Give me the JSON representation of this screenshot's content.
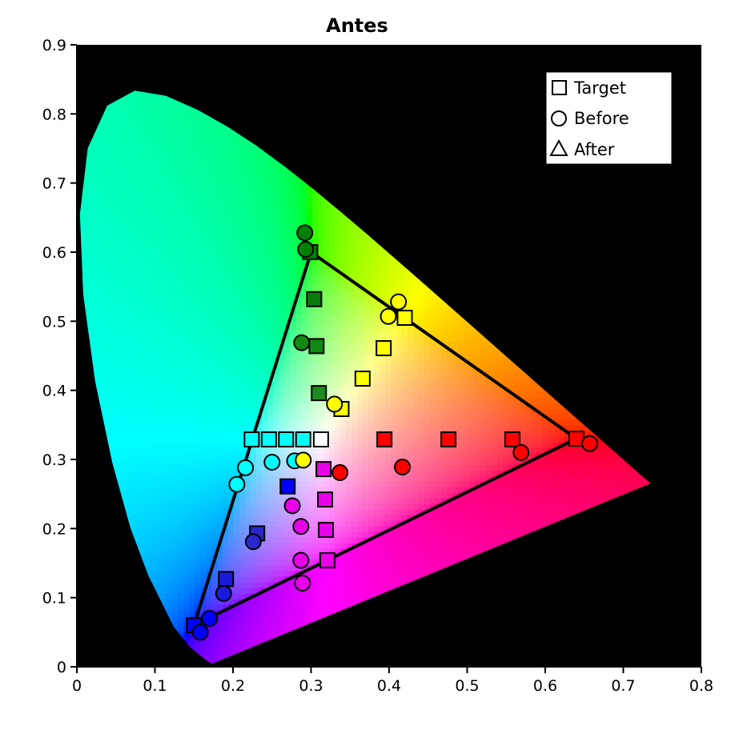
{
  "chart_data": {
    "type": "scatter",
    "title": "Antes",
    "xlabel": "",
    "ylabel": "",
    "xlim": [
      0,
      0.8
    ],
    "ylim": [
      0,
      0.9
    ],
    "x_ticks": [
      0,
      0.1,
      0.2,
      0.3,
      0.4,
      0.5,
      0.6,
      0.7,
      0.8
    ],
    "y_ticks": [
      0,
      0.1,
      0.2,
      0.3,
      0.4,
      0.5,
      0.6,
      0.7,
      0.8,
      0.9
    ],
    "x_tick_labels": [
      "0",
      "0.1",
      "0.2",
      "0.3",
      "0.4",
      "0.5",
      "0.6",
      "0.7",
      "0.8"
    ],
    "y_tick_labels": [
      "0",
      "0.1",
      "0.2",
      "0.3",
      "0.4",
      "0.5",
      "0.6",
      "0.7",
      "0.8",
      "0.9"
    ],
    "background_color": "#000000",
    "legend_position": "top-right",
    "legend": [
      {
        "label": "Target",
        "marker": "square"
      },
      {
        "label": "Before",
        "marker": "circle"
      },
      {
        "label": "After",
        "marker": "triangle"
      }
    ],
    "gamut_triangle": [
      [
        0.64,
        0.33
      ],
      [
        0.3,
        0.6
      ],
      [
        0.15,
        0.06
      ]
    ],
    "series": [
      {
        "name": "Target",
        "marker": "square",
        "points": [
          {
            "x": 0.15,
            "y": 0.06,
            "color": "#0000ff"
          },
          {
            "x": 0.191,
            "y": 0.127,
            "color": "#1a1adc"
          },
          {
            "x": 0.231,
            "y": 0.193,
            "color": "#2828cc"
          },
          {
            "x": 0.27,
            "y": 0.261,
            "color": "#0000ff"
          },
          {
            "x": 0.299,
            "y": 0.6,
            "color": "#008000"
          },
          {
            "x": 0.304,
            "y": 0.532,
            "color": "#0a7a0a"
          },
          {
            "x": 0.307,
            "y": 0.464,
            "color": "#118811"
          },
          {
            "x": 0.31,
            "y": 0.396,
            "color": "#1f8a1f"
          },
          {
            "x": 0.316,
            "y": 0.286,
            "color": "#e800e8"
          },
          {
            "x": 0.318,
            "y": 0.242,
            "color": "#e800e8"
          },
          {
            "x": 0.319,
            "y": 0.198,
            "color": "#e800e8"
          },
          {
            "x": 0.321,
            "y": 0.154,
            "color": "#e800e8"
          },
          {
            "x": 0.224,
            "y": 0.329,
            "color": "#00ffff"
          },
          {
            "x": 0.246,
            "y": 0.329,
            "color": "#00ffff"
          },
          {
            "x": 0.268,
            "y": 0.329,
            "color": "#00ffff"
          },
          {
            "x": 0.29,
            "y": 0.329,
            "color": "#00ffff"
          },
          {
            "x": 0.3127,
            "y": 0.329,
            "color": "#ffffff"
          },
          {
            "x": 0.394,
            "y": 0.329,
            "color": "#ff0000"
          },
          {
            "x": 0.476,
            "y": 0.329,
            "color": "#ff0000"
          },
          {
            "x": 0.558,
            "y": 0.329,
            "color": "#ff0000"
          },
          {
            "x": 0.64,
            "y": 0.33,
            "color": "#ff0000"
          },
          {
            "x": 0.42,
            "y": 0.505,
            "color": "#ffff00"
          },
          {
            "x": 0.393,
            "y": 0.461,
            "color": "#ffff00"
          },
          {
            "x": 0.366,
            "y": 0.417,
            "color": "#ffff00"
          },
          {
            "x": 0.339,
            "y": 0.373,
            "color": "#ffff00"
          }
        ]
      },
      {
        "name": "Before",
        "marker": "circle",
        "points": [
          {
            "x": 0.158,
            "y": 0.05,
            "color": "#0000ff"
          },
          {
            "x": 0.17,
            "y": 0.07,
            "color": "#0000ff"
          },
          {
            "x": 0.188,
            "y": 0.106,
            "color": "#1a1adc"
          },
          {
            "x": 0.226,
            "y": 0.181,
            "color": "#2828cc"
          },
          {
            "x": 0.292,
            "y": 0.628,
            "color": "#008000"
          },
          {
            "x": 0.293,
            "y": 0.604,
            "color": "#008000"
          },
          {
            "x": 0.288,
            "y": 0.469,
            "color": "#118811"
          },
          {
            "x": 0.205,
            "y": 0.264,
            "color": "#00ffff"
          },
          {
            "x": 0.216,
            "y": 0.288,
            "color": "#00ffff"
          },
          {
            "x": 0.25,
            "y": 0.296,
            "color": "#00ffff"
          },
          {
            "x": 0.279,
            "y": 0.298,
            "color": "#00ffff"
          },
          {
            "x": 0.29,
            "y": 0.299,
            "color": "#ffff00"
          },
          {
            "x": 0.276,
            "y": 0.233,
            "color": "#e800e8"
          },
          {
            "x": 0.287,
            "y": 0.203,
            "color": "#e800e8"
          },
          {
            "x": 0.287,
            "y": 0.154,
            "color": "#e800e8"
          },
          {
            "x": 0.289,
            "y": 0.121,
            "color": "#e800e8"
          },
          {
            "x": 0.337,
            "y": 0.281,
            "color": "#ff0000"
          },
          {
            "x": 0.417,
            "y": 0.289,
            "color": "#ff0000"
          },
          {
            "x": 0.569,
            "y": 0.31,
            "color": "#ff0000"
          },
          {
            "x": 0.657,
            "y": 0.323,
            "color": "#ff0000"
          },
          {
            "x": 0.412,
            "y": 0.528,
            "color": "#ffff00"
          },
          {
            "x": 0.399,
            "y": 0.507,
            "color": "#ffff00"
          },
          {
            "x": 0.33,
            "y": 0.38,
            "color": "#ffff00"
          }
        ]
      },
      {
        "name": "After",
        "marker": "triangle",
        "points": []
      }
    ]
  }
}
